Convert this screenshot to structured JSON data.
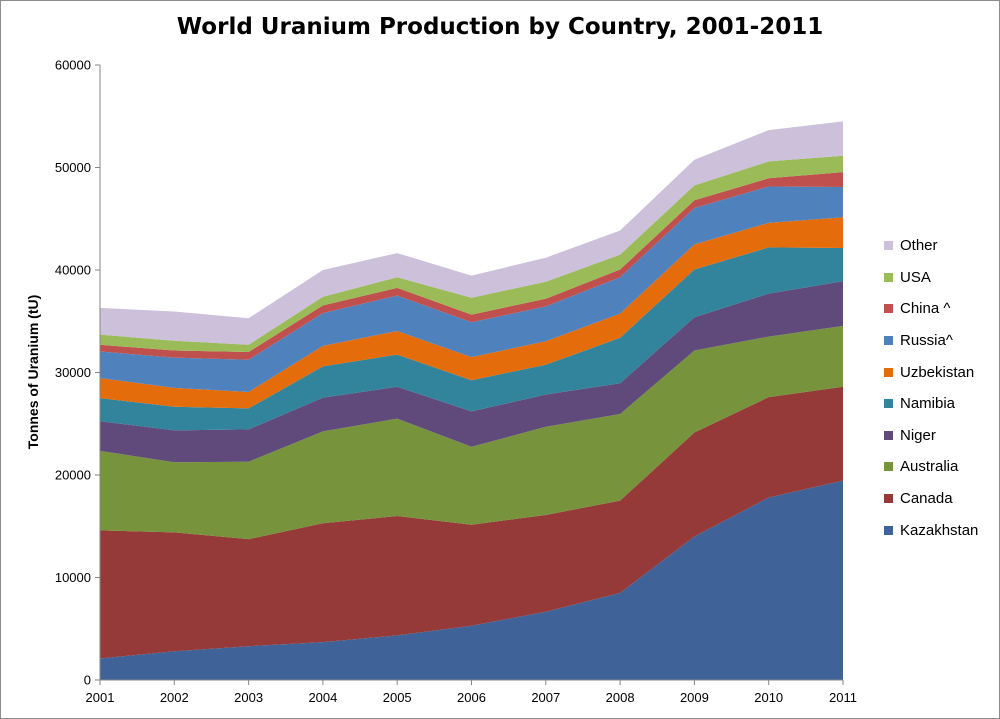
{
  "chart_data": {
    "type": "area",
    "stacked": true,
    "title": "World Uranium Production by Country, 2001-2011",
    "xlabel": "",
    "ylabel": "Tonnes of Uranium (tU)",
    "ylim": [
      0,
      60000
    ],
    "yticks": [
      "0",
      "10000",
      "20000",
      "30000",
      "40000",
      "50000",
      "60000"
    ],
    "x": [
      "2001",
      "2002",
      "2003",
      "2004",
      "2005",
      "2006",
      "2007",
      "2008",
      "2009",
      "2010",
      "2011"
    ],
    "grid": false,
    "legend_position": "right",
    "series": [
      {
        "name": "Kazakhstan",
        "color": "#3F6399",
        "values": [
          2100,
          2800,
          3300,
          3700,
          4350,
          5300,
          6650,
          8500,
          14000,
          17800,
          19450
        ]
      },
      {
        "name": "Canada",
        "color": "#953A38",
        "values": [
          12500,
          11600,
          10450,
          11600,
          11650,
          9850,
          9450,
          9000,
          10150,
          9800,
          9150
        ]
      },
      {
        "name": "Australia",
        "color": "#77933C",
        "values": [
          7750,
          6850,
          7550,
          8950,
          9500,
          7600,
          8600,
          8450,
          8000,
          5900,
          5950
        ]
      },
      {
        "name": "Niger",
        "color": "#5F4A7B",
        "values": [
          2900,
          3100,
          3150,
          3300,
          3100,
          3450,
          3150,
          3000,
          3250,
          4200,
          4350
        ]
      },
      {
        "name": "Namibia",
        "color": "#31849B",
        "values": [
          2250,
          2300,
          2050,
          3050,
          3150,
          3050,
          2900,
          4450,
          4650,
          4500,
          3250
        ]
      },
      {
        "name": "Uzbekistan",
        "color": "#E46C0A",
        "values": [
          1950,
          1850,
          1600,
          2000,
          2300,
          2250,
          2300,
          2350,
          2450,
          2400,
          3000
        ]
      },
      {
        "name": "Russia^",
        "color": "#4F81BD",
        "values": [
          2600,
          2950,
          3150,
          3200,
          3450,
          3400,
          3400,
          3550,
          3550,
          3550,
          2950
        ]
      },
      {
        "name": "China ^",
        "color": "#C0504D",
        "values": [
          650,
          700,
          750,
          750,
          750,
          750,
          750,
          750,
          750,
          800,
          1450
        ]
      },
      {
        "name": "USA",
        "color": "#9BBB59",
        "values": [
          1000,
          950,
          700,
          850,
          1050,
          1650,
          1650,
          1450,
          1450,
          1650,
          1600
        ]
      },
      {
        "name": "Other",
        "color": "#CCC0DA",
        "values": [
          2600,
          2850,
          2600,
          2600,
          2350,
          2150,
          2350,
          2350,
          2500,
          3050,
          3350
        ]
      }
    ]
  }
}
